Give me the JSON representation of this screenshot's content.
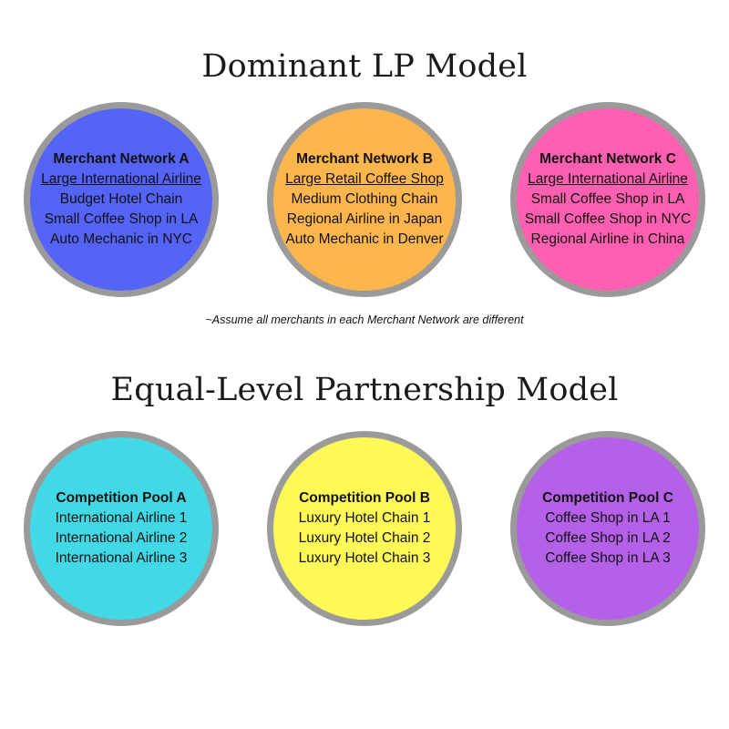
{
  "dominant": {
    "title": "Dominant LP Model",
    "circles": [
      {
        "color": "#5564f8",
        "heading": "Merchant Network  A",
        "underlined": "Large International Airline",
        "items": [
          "Budget Hotel Chain",
          "Small Coffee Shop in LA",
          "Auto Mechanic in NYC"
        ]
      },
      {
        "color": "#fdb64c",
        "heading": "Merchant Network B",
        "underlined": "Large Retail Coffee Shop",
        "items": [
          "Medium Clothing Chain",
          "Regional Airline in Japan",
          "Auto Mechanic in Denver"
        ]
      },
      {
        "color": "#ff5fb1",
        "heading": "Merchant Network C",
        "underlined": "Large International Airline",
        "items": [
          "Small Coffee Shop in LA",
          "Small Coffee Shop in NYC",
          "Regional Airline in China"
        ]
      }
    ],
    "note": "~Assume all merchants in each Merchant Network are different"
  },
  "equal": {
    "title": "Equal-Level Partnership Model",
    "circles": [
      {
        "color": "#41d9e5",
        "heading": "Competition Pool A",
        "items": [
          "International Airline 1",
          "International Airline 2",
          "International Airline 3"
        ]
      },
      {
        "color": "#fff957",
        "heading": "Competition Pool B",
        "items": [
          "Luxury Hotel Chain 1",
          "Luxury Hotel Chain 2",
          "Luxury Hotel Chain 3"
        ]
      },
      {
        "color": "#b560e8",
        "heading": "Competition Pool C",
        "items": [
          "Coffee Shop in LA 1",
          "Coffee Shop in LA 2",
          "Coffee Shop in LA 3"
        ]
      }
    ]
  }
}
